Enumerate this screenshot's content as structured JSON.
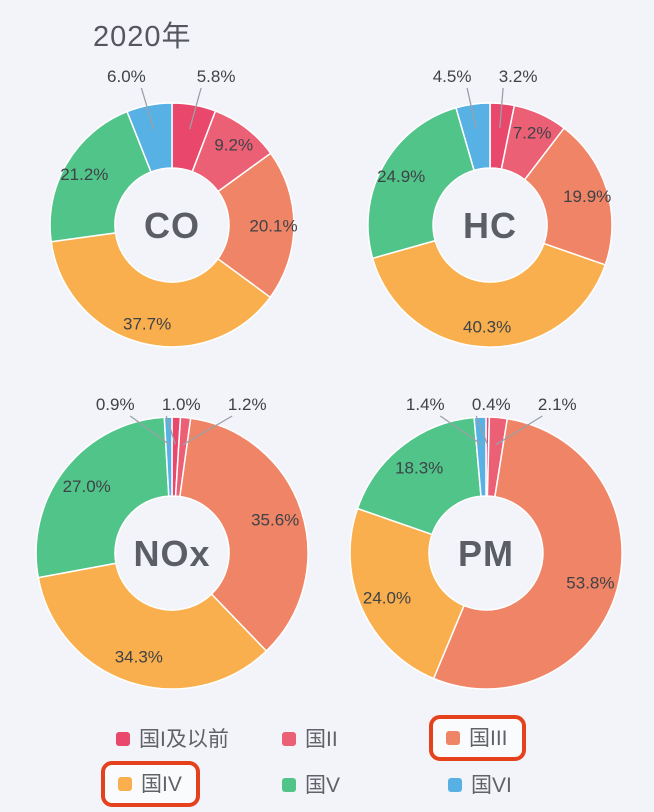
{
  "title": "2020年",
  "colors": {
    "background": "#f3f4f9",
    "title_text": "#54575d",
    "label_text": "#3f4247",
    "center_text": "#5b5e65",
    "leader_line": "#9aa0a8",
    "legend_text": "#606268",
    "highlight_box": "#e6411d",
    "slice_border": "#ffffff"
  },
  "legend": {
    "items": [
      {
        "label": "国I及以前",
        "color": "#e9486c",
        "highlighted": false
      },
      {
        "label": "国II",
        "color": "#ec6076",
        "highlighted": false
      },
      {
        "label": "国III",
        "color": "#ef8466",
        "highlighted": true
      },
      {
        "label": "国IV",
        "color": "#f9af4d",
        "highlighted": true
      },
      {
        "label": "国V",
        "color": "#51c489",
        "highlighted": false
      },
      {
        "label": "国VI",
        "color": "#58b1e4",
        "highlighted": false
      }
    ]
  },
  "chart_data": {
    "type": "pie",
    "subtype": "donut",
    "title": "2020年",
    "unit": "%",
    "label_format": "{value}%",
    "legend_position": "bottom",
    "categories": [
      "国I及以前",
      "国II",
      "国III",
      "国IV",
      "国V",
      "国VI"
    ],
    "series_colors": [
      "#e9486c",
      "#ec6076",
      "#ef8466",
      "#f9af4d",
      "#51c489",
      "#58b1e4"
    ],
    "charts": [
      {
        "name": "CO",
        "values": [
          5.8,
          9.2,
          20.1,
          37.7,
          21.2,
          6.0
        ]
      },
      {
        "name": "HC",
        "values": [
          3.2,
          7.2,
          19.9,
          40.3,
          24.9,
          4.5
        ]
      },
      {
        "name": "NOx",
        "values": [
          1.0,
          1.2,
          35.6,
          34.3,
          27.0,
          0.9
        ]
      },
      {
        "name": "PM",
        "values": [
          0.4,
          2.1,
          53.8,
          24.0,
          18.3,
          1.4
        ]
      }
    ],
    "highlighted_categories": [
      "国III",
      "国IV"
    ]
  }
}
